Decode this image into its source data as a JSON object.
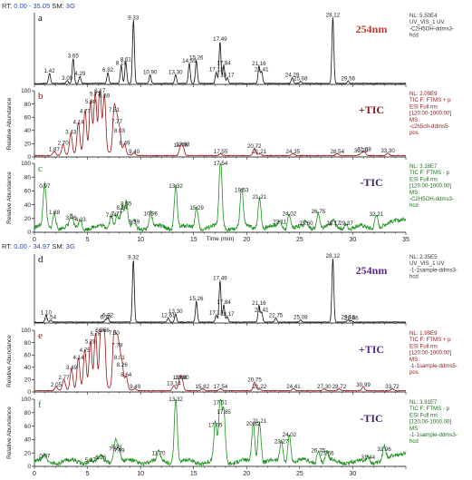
{
  "header_top": {
    "rt_label": "RT:",
    "rt_range": "0.00 - 35.05",
    "sm_label": "SM:",
    "sm_value": "3G"
  },
  "header_bottom": {
    "rt_label": "RT:",
    "rt_range": "0.00 - 34.97",
    "sm_label": "SM:",
    "sm_value": "3G"
  },
  "colors": {
    "black": "#111111",
    "red": "#a01515",
    "green": "#1f8f1f",
    "purple": "#5a2a8a",
    "tic_plus_label": "#8b1a1a",
    "tic_minus_label": "#3c1f6e"
  },
  "chart_data": [
    {
      "type": "line",
      "letter": "a",
      "mode": "254nm",
      "meta": [
        "NL: 5.50E4",
        "UV_VIS_1 UV",
        "-C2H5OH-ddms3-",
        "hcd"
      ],
      "xlim": [
        0,
        35
      ],
      "ylabel": "",
      "yticks": [],
      "ylim": [
        0,
        100
      ],
      "peaks": [
        {
          "x": 1.42,
          "y": 14
        },
        {
          "x": 3.09,
          "y": 4
        },
        {
          "x": 3.65,
          "y": 35
        },
        {
          "x": 4.29,
          "y": 10
        },
        {
          "x": 6.92,
          "y": 15
        },
        {
          "x": 8.18,
          "y": 25
        },
        {
          "x": 8.61,
          "y": 30
        },
        {
          "x": 9.33,
          "y": 88
        },
        {
          "x": 10.9,
          "y": 12
        },
        {
          "x": 13.3,
          "y": 12
        },
        {
          "x": 14.59,
          "y": 28
        },
        {
          "x": 15.26,
          "y": 32
        },
        {
          "x": 17.13,
          "y": 16
        },
        {
          "x": 17.49,
          "y": 58
        },
        {
          "x": 17.84,
          "y": 25
        },
        {
          "x": 18.17,
          "y": 8
        },
        {
          "x": 21.16,
          "y": 24
        },
        {
          "x": 21.41,
          "y": 16
        },
        {
          "x": 24.29,
          "y": 8
        },
        {
          "x": 25.08,
          "y": 3
        },
        {
          "x": 28.12,
          "y": 92
        },
        {
          "x": 29.56,
          "y": 3
        }
      ]
    },
    {
      "type": "line",
      "letter": "b",
      "mode": "+TIC",
      "meta": [
        "NL: 2.09E9",
        "TIC F: FTMS + p",
        "ESI Full ms",
        "[120.00-1000.00]",
        "MS",
        "-c2h5oh-ddms5-",
        "pos"
      ],
      "xlim": [
        0,
        35
      ],
      "ylabel": "Relative Abundance",
      "yticks": [
        0,
        20,
        40,
        60,
        80,
        100
      ],
      "ylim": [
        0,
        100
      ],
      "peaks": [
        {
          "x": 1.87,
          "y": 6
        },
        {
          "x": 2.7,
          "y": 16
        },
        {
          "x": 3.43,
          "y": 32
        },
        {
          "x": 4.14,
          "y": 47
        },
        {
          "x": 4.77,
          "y": 64
        },
        {
          "x": 5.3,
          "y": 78
        },
        {
          "x": 5.73,
          "y": 90
        },
        {
          "x": 6.17,
          "y": 100
        },
        {
          "x": 6.59,
          "y": 87
        },
        {
          "x": 7.51,
          "y": 66
        },
        {
          "x": 7.77,
          "y": 48
        },
        {
          "x": 8.03,
          "y": 34
        },
        {
          "x": 8.49,
          "y": 16
        },
        {
          "x": 9.4,
          "y": 3
        },
        {
          "x": 13.76,
          "y": 12
        },
        {
          "x": 13.98,
          "y": 14
        },
        {
          "x": 17.55,
          "y": 3
        },
        {
          "x": 20.72,
          "y": 11
        },
        {
          "x": 21.21,
          "y": 3
        },
        {
          "x": 24.35,
          "y": 3
        },
        {
          "x": 28.54,
          "y": 3
        },
        {
          "x": 30.78,
          "y": 4
        },
        {
          "x": 31.08,
          "y": 6
        },
        {
          "x": 33.3,
          "y": 4
        }
      ]
    },
    {
      "type": "line",
      "letter": "c",
      "mode": "-TIC",
      "meta": [
        "NL: 3.18E7",
        "TIC F: FTMS - p",
        "ESI Full ms",
        "[120.00-1000.00]",
        "MS",
        "-C2H5OH-ddms3-",
        "hcd"
      ],
      "xlim": [
        0,
        35
      ],
      "ylabel": "Relative Abundance",
      "yticks": [
        0,
        20,
        40,
        60,
        80,
        100
      ],
      "ylim": [
        0,
        100
      ],
      "xticks": [
        0,
        5,
        10,
        15,
        20,
        25,
        30,
        35
      ],
      "xlabel": "Time (min)",
      "peaks": [
        {
          "x": 0.97,
          "y": 62
        },
        {
          "x": 1.88,
          "y": 24
        },
        {
          "x": 3.46,
          "y": 16
        },
        {
          "x": 4.33,
          "y": 13
        },
        {
          "x": 7.24,
          "y": 20
        },
        {
          "x": 7.77,
          "y": 22
        },
        {
          "x": 8.24,
          "y": 30
        },
        {
          "x": 8.65,
          "y": 36
        },
        {
          "x": 9.39,
          "y": 10
        },
        {
          "x": 10.96,
          "y": 22
        },
        {
          "x": 13.32,
          "y": 62
        },
        {
          "x": 15.29,
          "y": 30
        },
        {
          "x": 17.54,
          "y": 96
        },
        {
          "x": 19.53,
          "y": 56
        },
        {
          "x": 21.21,
          "y": 46
        },
        {
          "x": 23.11,
          "y": 10
        },
        {
          "x": 24.02,
          "y": 22
        },
        {
          "x": 25.6,
          "y": 8
        },
        {
          "x": 26.75,
          "y": 25
        },
        {
          "x": 28.17,
          "y": 8
        },
        {
          "x": 29.37,
          "y": 8
        },
        {
          "x": 32.21,
          "y": 21
        }
      ]
    },
    {
      "type": "line",
      "letter": "d",
      "mode": "254nm",
      "meta": [
        "NL: 2.35E5",
        "UV_VIS_1 UV",
        "-1-1sample-ddms3-",
        "hcd"
      ],
      "xlim": [
        0,
        35
      ],
      "ylabel": "",
      "yticks": [],
      "ylim": [
        0,
        100
      ],
      "peaks": [
        {
          "x": 1.1,
          "y": 10
        },
        {
          "x": 1.54,
          "y": 3
        },
        {
          "x": 6.7,
          "y": 3
        },
        {
          "x": 6.92,
          "y": 6
        },
        {
          "x": 9.32,
          "y": 90
        },
        {
          "x": 12.61,
          "y": 6
        },
        {
          "x": 13.3,
          "y": 12
        },
        {
          "x": 15.26,
          "y": 30
        },
        {
          "x": 17.13,
          "y": 10
        },
        {
          "x": 17.49,
          "y": 60
        },
        {
          "x": 17.84,
          "y": 25
        },
        {
          "x": 18.17,
          "y": 8
        },
        {
          "x": 21.16,
          "y": 24
        },
        {
          "x": 21.41,
          "y": 14
        },
        {
          "x": 22.75,
          "y": 6
        },
        {
          "x": 25.08,
          "y": 3
        },
        {
          "x": 28.12,
          "y": 92
        },
        {
          "x": 29.56,
          "y": 3
        },
        {
          "x": 29.86,
          "y": 2
        }
      ]
    },
    {
      "type": "line",
      "letter": "e",
      "mode": "+TIC",
      "meta": [
        "NL: 1.99E9",
        "TIC F: FTMS + p",
        "ESI Full ms",
        "[120.00-1000.00]",
        "MS",
        "-1-1sample-ddms5-",
        "pos"
      ],
      "xlim": [
        0,
        35
      ],
      "ylabel": "Relative Abundance",
      "yticks": [
        0,
        20,
        40,
        60,
        80,
        100
      ],
      "ylim": [
        0,
        100
      ],
      "peaks": [
        {
          "x": 2.05,
          "y": 6
        },
        {
          "x": 2.77,
          "y": 18
        },
        {
          "x": 3.49,
          "y": 34
        },
        {
          "x": 4.14,
          "y": 50
        },
        {
          "x": 4.75,
          "y": 62
        },
        {
          "x": 5.28,
          "y": 76
        },
        {
          "x": 5.76,
          "y": 88
        },
        {
          "x": 6.26,
          "y": 96
        },
        {
          "x": 6.56,
          "y": 99
        },
        {
          "x": 7.5,
          "y": 90
        },
        {
          "x": 7.78,
          "y": 70
        },
        {
          "x": 8.01,
          "y": 50
        },
        {
          "x": 8.26,
          "y": 38
        },
        {
          "x": 8.64,
          "y": 22
        },
        {
          "x": 9.49,
          "y": 3
        },
        {
          "x": 13.14,
          "y": 8
        },
        {
          "x": 13.68,
          "y": 18
        },
        {
          "x": 13.9,
          "y": 18
        },
        {
          "x": 15.82,
          "y": 3
        },
        {
          "x": 17.54,
          "y": 3
        },
        {
          "x": 20.75,
          "y": 14
        },
        {
          "x": 21.22,
          "y": 3
        },
        {
          "x": 24.41,
          "y": 3
        },
        {
          "x": 27.3,
          "y": 3
        },
        {
          "x": 28.72,
          "y": 3
        },
        {
          "x": 30.99,
          "y": 6
        },
        {
          "x": 33.72,
          "y": 3
        }
      ]
    },
    {
      "type": "line",
      "letter": "f",
      "mode": "-TIC",
      "meta": [
        "NL: 3.91E7",
        "TIC F: FTMS - p",
        "ESI Full ms",
        "[120.00-1000.00]",
        "MS",
        "-1-1sample-ddms3-",
        "hcd"
      ],
      "xlim": [
        0,
        35
      ],
      "ylabel": "Relative Abundance",
      "yticks": [
        0,
        20,
        40,
        60,
        80,
        100
      ],
      "ylim": [
        0,
        100
      ],
      "xticks": [
        0,
        5,
        10,
        15,
        20,
        25,
        30
      ],
      "xlabel": "",
      "peaks": [
        {
          "x": 0.97,
          "y": 10
        },
        {
          "x": 5.27,
          "y": 4
        },
        {
          "x": 6.26,
          "y": 8
        },
        {
          "x": 7.55,
          "y": 21
        },
        {
          "x": 7.73,
          "y": 23
        },
        {
          "x": 7.99,
          "y": 18
        },
        {
          "x": 11.7,
          "y": 14
        },
        {
          "x": 13.32,
          "y": 96
        },
        {
          "x": 17.05,
          "y": 56
        },
        {
          "x": 17.51,
          "y": 90
        },
        {
          "x": 17.85,
          "y": 76
        },
        {
          "x": 20.62,
          "y": 58
        },
        {
          "x": 21.21,
          "y": 62
        },
        {
          "x": 23.27,
          "y": 32
        },
        {
          "x": 24.02,
          "y": 42
        },
        {
          "x": 26.75,
          "y": 18
        },
        {
          "x": 27.56,
          "y": 14
        },
        {
          "x": 31.44,
          "y": 8
        },
        {
          "x": 32.96,
          "y": 20
        }
      ]
    }
  ]
}
